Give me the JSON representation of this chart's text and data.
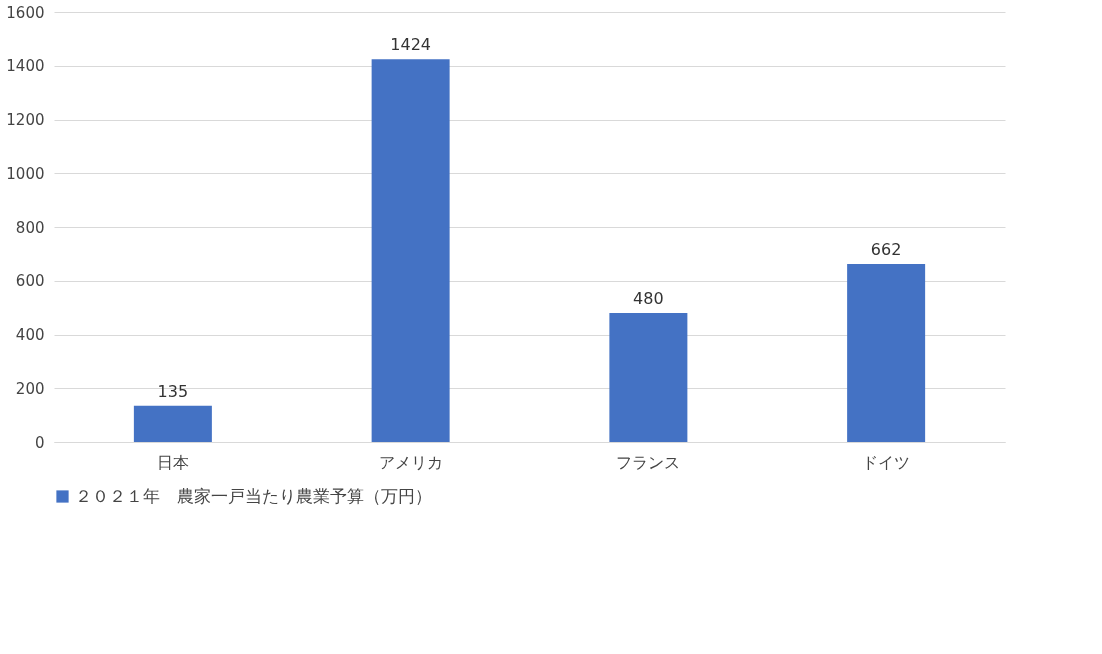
{
  "chart_data": {
    "type": "bar",
    "categories": [
      "日本",
      "アメリカ",
      "フランス",
      "ドイツ"
    ],
    "series": [
      {
        "name": "２０２１年　農家一戸当たり農業予算（万円）",
        "color": "#4472c4",
        "values": [
          135,
          1424,
          480,
          662
        ]
      }
    ],
    "ylim": [
      0,
      1600
    ],
    "yticks": [
      0,
      200,
      400,
      600,
      800,
      1000,
      1200,
      1400,
      1600
    ],
    "grid": "y",
    "legend": "bottom",
    "data_labels": true
  }
}
